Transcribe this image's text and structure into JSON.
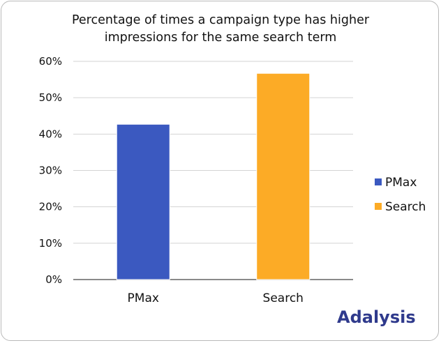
{
  "chart_data": {
    "type": "bar",
    "title_lines": [
      "Percentage of times a campaign type has higher",
      "impressions for the same search term"
    ],
    "categories": [
      "PMax",
      "Search"
    ],
    "values": [
      42.7,
      56.7
    ],
    "colors": [
      "#3b59c0",
      "#fcab26"
    ],
    "ylim": [
      0,
      60
    ],
    "yticks": [
      0,
      10,
      20,
      30,
      40,
      50,
      60
    ],
    "ytick_labels": [
      "0%",
      "10%",
      "20%",
      "30%",
      "40%",
      "50%",
      "60%"
    ],
    "xlabel": "",
    "ylabel": "",
    "grid": true,
    "legend": {
      "position": "right",
      "entries": [
        {
          "label": "PMax",
          "color": "#3b59c0"
        },
        {
          "label": "Search",
          "color": "#fcab26"
        }
      ]
    }
  },
  "brand": {
    "logo_text": "Adalysis",
    "color": "#2f3a8c"
  }
}
